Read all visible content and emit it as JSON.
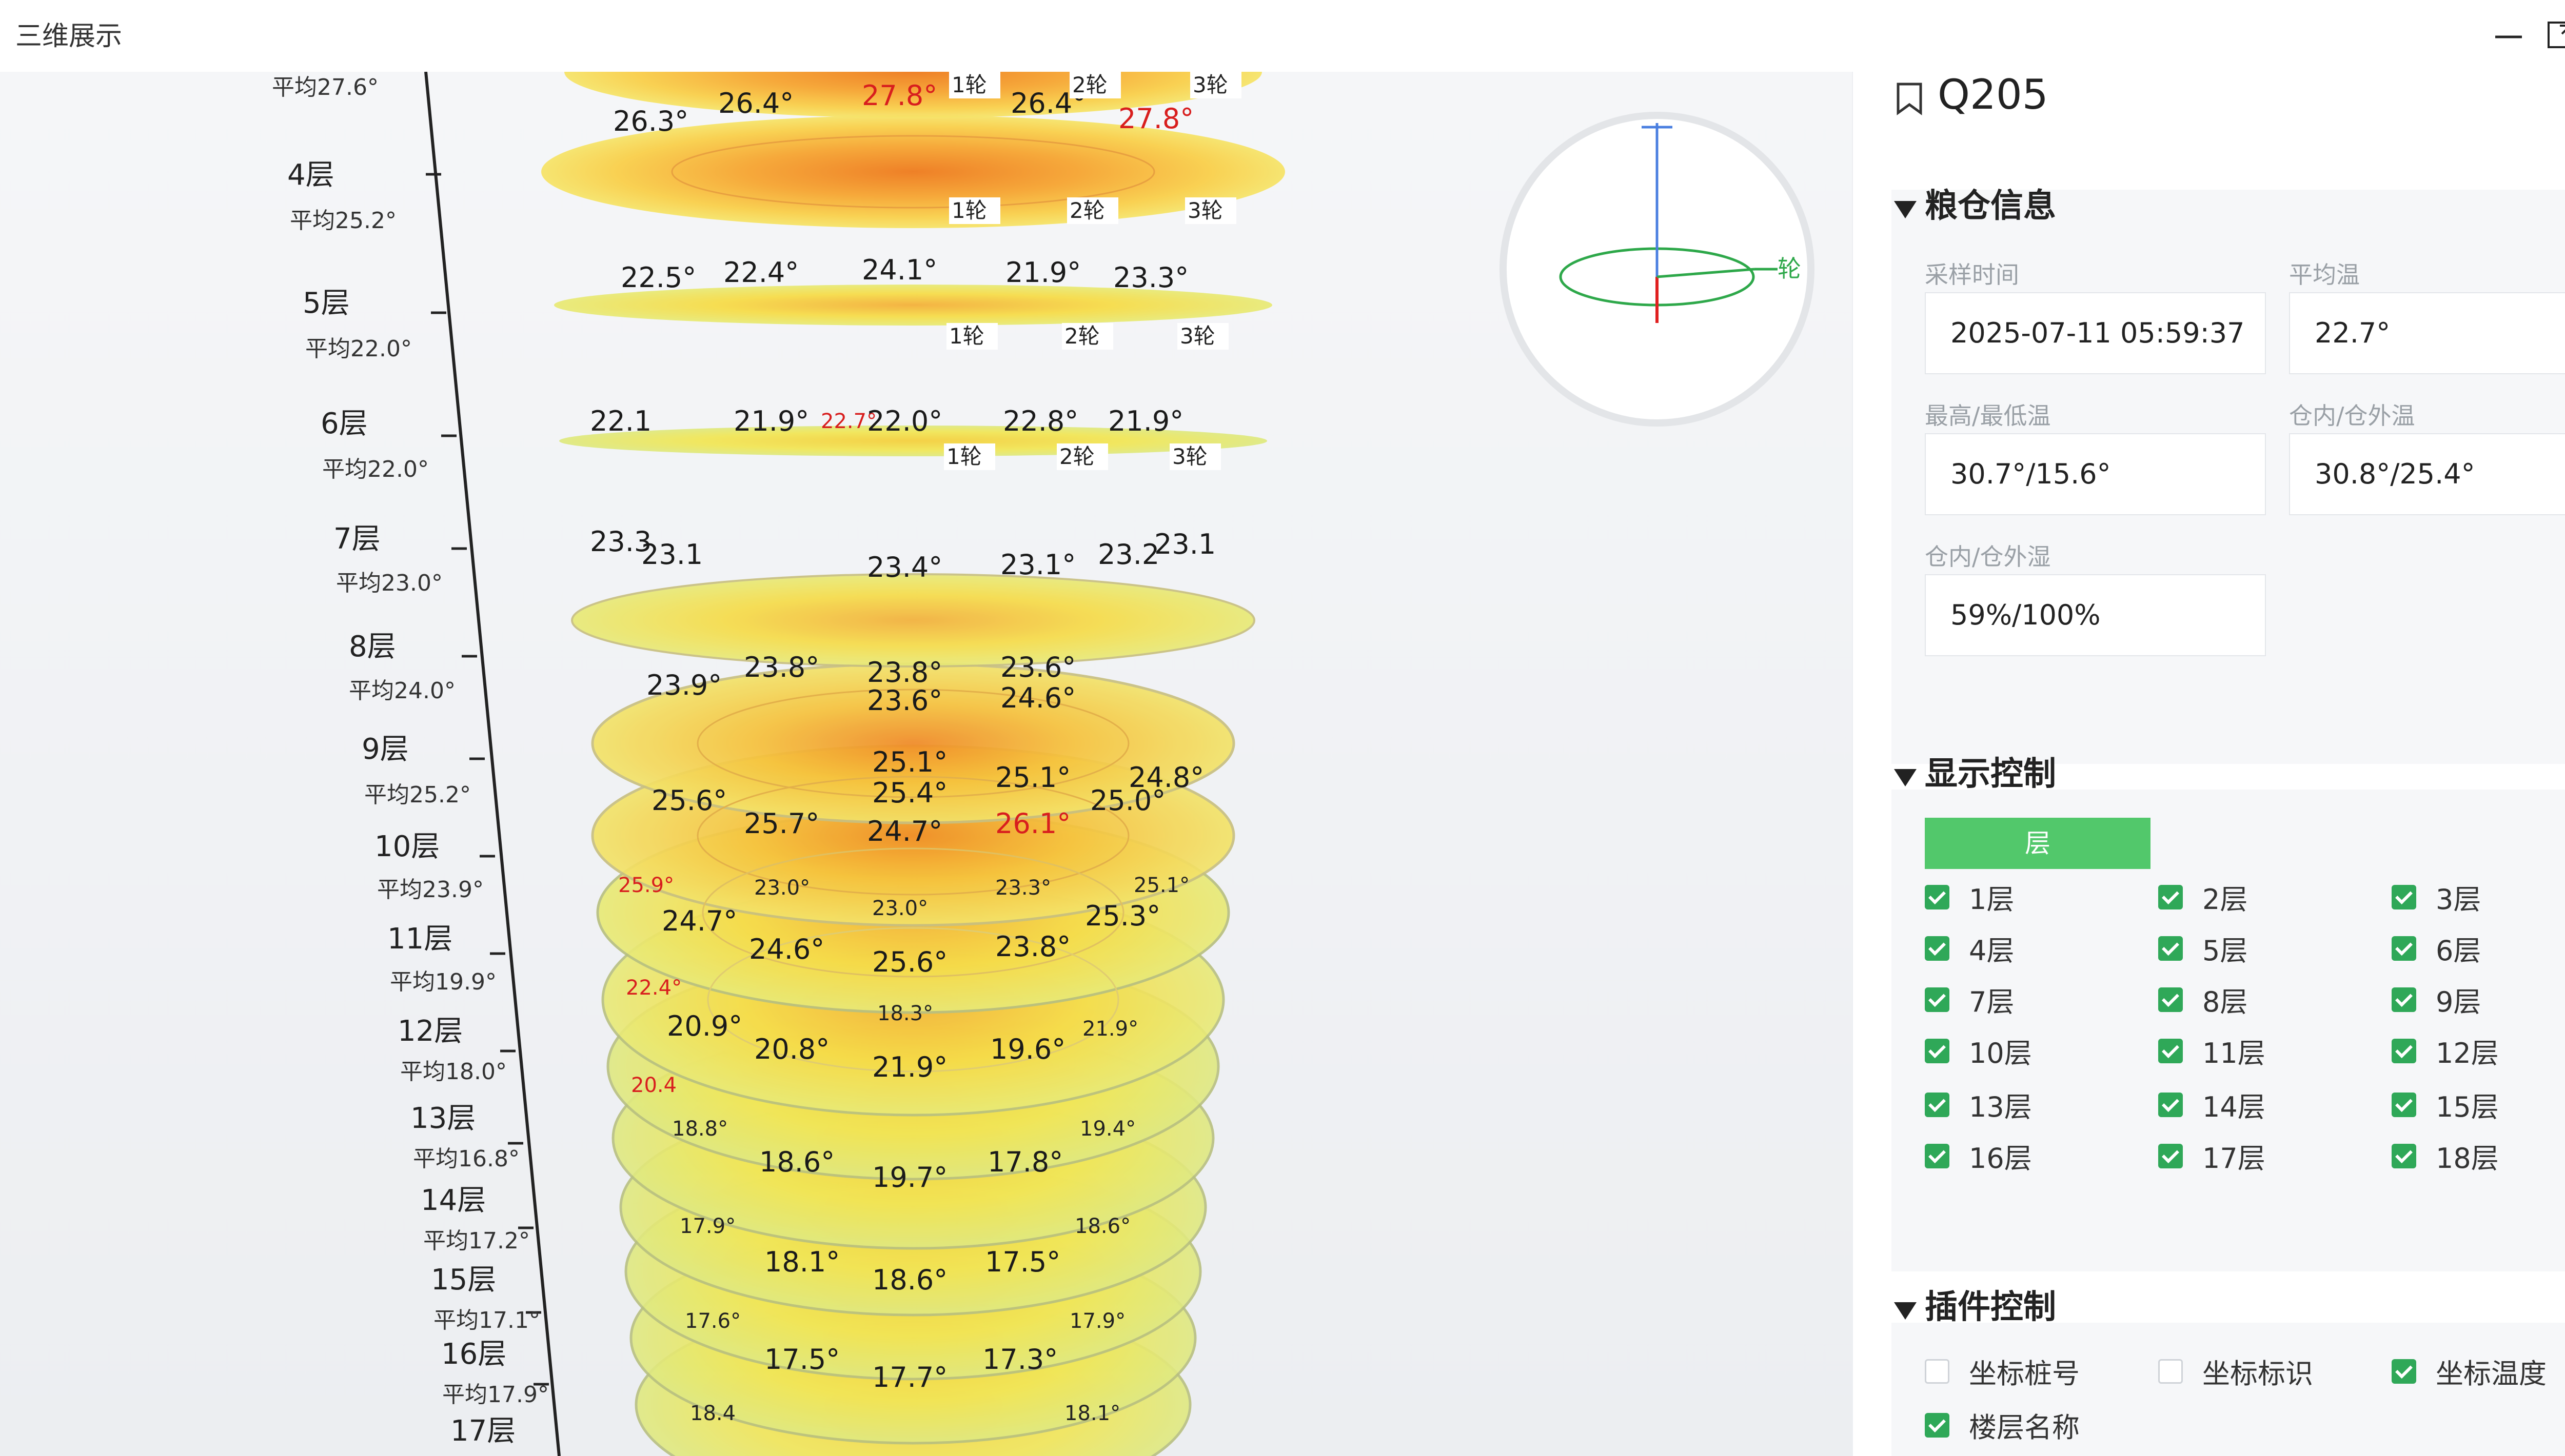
{
  "window": {
    "title": "三维展示",
    "controls": {
      "minimize": "minimize-icon",
      "maximize": "maximize-icon",
      "close": "close-icon"
    }
  },
  "scene": {
    "levels": [
      {
        "name": "",
        "avg": "平均27.6°"
      },
      {
        "name": "4层",
        "avg": "平均25.2°"
      },
      {
        "name": "5层",
        "avg": "平均22.0°"
      },
      {
        "name": "6层",
        "avg": "平均22.0°"
      },
      {
        "name": "7层",
        "avg": "平均23.0°"
      },
      {
        "name": "8层",
        "avg": "平均24.0°"
      },
      {
        "name": "9层",
        "avg": "平均25.2°"
      },
      {
        "name": "10层",
        "avg": "平均23.9°"
      },
      {
        "name": "11层",
        "avg": "平均19.9°"
      },
      {
        "name": "12层",
        "avg": "平均18.0°"
      },
      {
        "name": "13层",
        "avg": "平均16.8°"
      },
      {
        "name": "14层",
        "avg": "平均17.2°"
      },
      {
        "name": "15层",
        "avg": "平均17.1°"
      },
      {
        "name": "16层",
        "avg": "平均17.9°"
      },
      {
        "name": "17层",
        "avg": ""
      }
    ],
    "rings": [
      "1轮",
      "2轮",
      "3轮"
    ],
    "compass_label": "轮",
    "temps": {
      "t1": "26.4°",
      "t2": "27.8°",
      "t3": "26.4°",
      "t4": "27.8°",
      "t5": "26.3°",
      "t6": "22.5°",
      "t7": "22.4°",
      "t8": "24.1°",
      "t9": "21.9°",
      "t10": "23.3°",
      "t11": "22.1",
      "t12": "21.9°",
      "t13": "22.7°",
      "t14": "22.0°",
      "t15": "22.8°",
      "t16": "21.9°",
      "t17": "23.3",
      "t18": "23.1",
      "t19": "23.4°",
      "t20": "23.1°",
      "t21": "23.2",
      "t22": "23.1",
      "t23": "23.9°",
      "t24": "23.8°",
      "t25": "23.8°",
      "t26": "23.6°",
      "t27": "24.6°",
      "t28": "23.6°",
      "t29": "25.1°",
      "t30": "25.4°",
      "t31": "26.1°",
      "t32": "25.0°",
      "t33": "24.7°",
      "t34": "25.7°",
      "t35": "25.6°",
      "t36": "25.1°",
      "t37": "24.8°",
      "t38": "23.0°",
      "t39": "23.0°",
      "t40": "23.3°",
      "t41": "24.6°",
      "t42": "25.6°",
      "t43": "23.8°",
      "t44": "24.7°",
      "t45": "25.9°",
      "t46": "25.1°",
      "t47": "25.3°",
      "t48": "18.3°",
      "t49": "20.8°",
      "t50": "21.9°",
      "t51": "19.6°",
      "t52": "20.9°",
      "t53": "21.9°",
      "t54": "22.4°",
      "t55": "18.8°",
      "t56": "18.6°",
      "t57": "19.7°",
      "t58": "17.8°",
      "t59": "19.4°",
      "t60": "20.4",
      "t61": "17.9°",
      "t62": "18.1°",
      "t63": "18.6°",
      "t64": "17.5°",
      "t65": "18.6°",
      "t66": "17.6°",
      "t67": "17.5°",
      "t68": "17.7°",
      "t69": "17.3°",
      "t70": "17.9°",
      "t71": "18.4",
      "t72": "18.1°"
    }
  },
  "panel": {
    "title": "Q205",
    "grain_info": {
      "heading": "粮仓信息",
      "sample_time_label": "采样时间",
      "sample_time": "2025-07-11 05:59:37",
      "avg_temp_label": "平均温",
      "avg_temp": "22.7°",
      "max_min_label": "最高/最低温",
      "max_min": "30.7°/15.6°",
      "in_out_temp_label": "仓内/仓外温",
      "in_out_temp": "30.8°/25.4°",
      "in_out_hum_label": "仓内/仓外湿",
      "in_out_hum": "59%/100%"
    },
    "display": {
      "heading": "显示控制",
      "layer_button": "层",
      "layers": [
        {
          "label": "1层",
          "checked": true
        },
        {
          "label": "2层",
          "checked": true
        },
        {
          "label": "3层",
          "checked": true
        },
        {
          "label": "4层",
          "checked": true
        },
        {
          "label": "5层",
          "checked": true
        },
        {
          "label": "6层",
          "checked": true
        },
        {
          "label": "7层",
          "checked": true
        },
        {
          "label": "8层",
          "checked": true
        },
        {
          "label": "9层",
          "checked": true
        },
        {
          "label": "10层",
          "checked": true
        },
        {
          "label": "11层",
          "checked": true
        },
        {
          "label": "12层",
          "checked": true
        },
        {
          "label": "13层",
          "checked": true
        },
        {
          "label": "14层",
          "checked": true
        },
        {
          "label": "15层",
          "checked": true
        },
        {
          "label": "16层",
          "checked": true
        },
        {
          "label": "17层",
          "checked": true
        },
        {
          "label": "18层",
          "checked": true
        }
      ]
    },
    "plugins": {
      "heading": "插件控制",
      "items": [
        {
          "label": "坐标桩号",
          "checked": false
        },
        {
          "label": "坐标标识",
          "checked": false
        },
        {
          "label": "坐标温度",
          "checked": true
        },
        {
          "label": "楼层名称",
          "checked": true
        }
      ]
    }
  },
  "colors": {
    "accent_green": "#52c86b",
    "check_green": "#2fa858",
    "link_blue": "#2f8ff0",
    "hot_red": "#d81e1e"
  }
}
